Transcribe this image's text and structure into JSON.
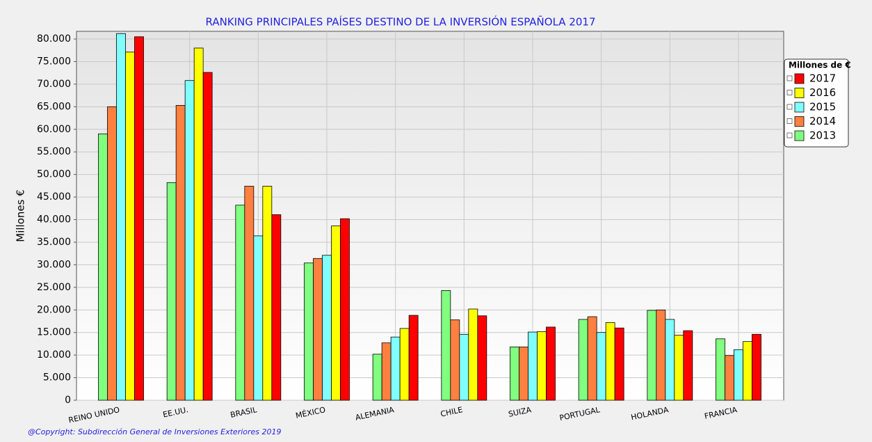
{
  "chart_data": {
    "type": "bar",
    "title": "RANKING PRINCIPALES PAÍSES DESTINO DE LA INVERSIÓN ESPAÑOLA 2017",
    "y_label": "Millones €",
    "legend_title": "Millones de €",
    "footnote": "@Copyright: Subdirección General de Inversiones Exteriores 2019",
    "categories": [
      "REINO UNIDO",
      "EE.UU.",
      "BRASIL",
      "MÉXICO",
      "ALEMANIA",
      "CHILE",
      "SUIZA",
      "PORTUGAL",
      "HOLANDA",
      "FRANCIA"
    ],
    "series": [
      {
        "name": "2013",
        "color": "#80ff80",
        "values": [
          59000,
          48200,
          43200,
          30400,
          10200,
          24300,
          11800,
          17900,
          19900,
          13600
        ]
      },
      {
        "name": "2014",
        "color": "#ff8040",
        "values": [
          65000,
          65300,
          47400,
          31400,
          12700,
          17800,
          11800,
          18500,
          20000,
          9900
        ]
      },
      {
        "name": "2015",
        "color": "#80ffff",
        "values": [
          81200,
          70800,
          36400,
          32100,
          14000,
          14600,
          15100,
          15000,
          17900,
          11200
        ]
      },
      {
        "name": "2016",
        "color": "#ffff00",
        "values": [
          77100,
          78000,
          47400,
          38600,
          15900,
          20200,
          15200,
          17200,
          14400,
          13000
        ]
      },
      {
        "name": "2017",
        "color": "#ff0000",
        "values": [
          80500,
          72600,
          41100,
          40200,
          18800,
          18700,
          16200,
          16000,
          15400,
          14600
        ]
      }
    ],
    "ylim": [
      0,
      81700
    ],
    "yticks": [
      0,
      {
        "value": 5000,
        "label": "5.000"
      },
      {
        "value": 10000,
        "label": "10.000"
      },
      {
        "value": 15000,
        "label": "15.000"
      },
      {
        "value": 20000,
        "label": "20.000"
      },
      {
        "value": 25000,
        "label": "25.000"
      },
      {
        "value": 30000,
        "label": "30.000"
      },
      {
        "value": 35000,
        "label": "35.000"
      },
      {
        "value": 40000,
        "label": "40.000"
      },
      {
        "value": 45000,
        "label": "45.000"
      },
      {
        "value": 50000,
        "label": "50.000"
      },
      {
        "value": 55000,
        "label": "55.000"
      },
      {
        "value": 60000,
        "label": "60.000"
      },
      {
        "value": 65000,
        "label": "65.000"
      },
      {
        "value": 70000,
        "label": "70.000"
      },
      {
        "value": 75000,
        "label": "75.000"
      },
      {
        "value": 80000,
        "label": "80.000"
      }
    ],
    "grid": true
  }
}
